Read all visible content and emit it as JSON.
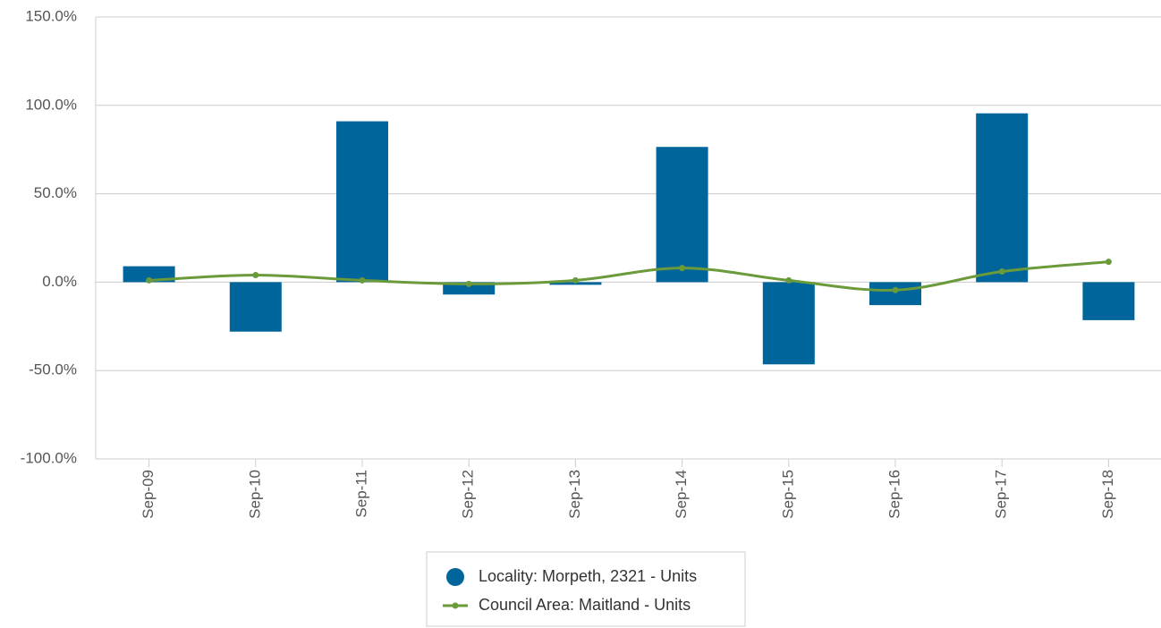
{
  "chart_data": {
    "type": "bar+line",
    "categories": [
      "Sep-09",
      "Sep-10",
      "Sep-11",
      "Sep-12",
      "Sep-13",
      "Sep-14",
      "Sep-15",
      "Sep-16",
      "Sep-17",
      "Sep-18"
    ],
    "series": [
      {
        "name": "Locality: Morpeth, 2321 - Units",
        "type": "bar",
        "color": "#00659a",
        "values": [
          9,
          -28,
          91,
          -7,
          -1.5,
          76.5,
          -46.5,
          -13,
          95.5,
          -21.5
        ]
      },
      {
        "name": "Council Area: Maitland - Units",
        "type": "line",
        "color": "#6a9a3a",
        "values": [
          1,
          4,
          1,
          -1,
          1,
          8,
          1,
          -4.5,
          6,
          11.5
        ]
      }
    ],
    "ylim": [
      -100,
      150
    ],
    "yticks": [
      {
        "value": -100,
        "label": "-100.0%"
      },
      {
        "value": -50,
        "label": "-50.0%"
      },
      {
        "value": 0,
        "label": "0.0%"
      },
      {
        "value": 50,
        "label": "50.0%"
      },
      {
        "value": 100,
        "label": "100.0%"
      },
      {
        "value": 150,
        "label": "150.0%"
      }
    ],
    "grid": true
  }
}
